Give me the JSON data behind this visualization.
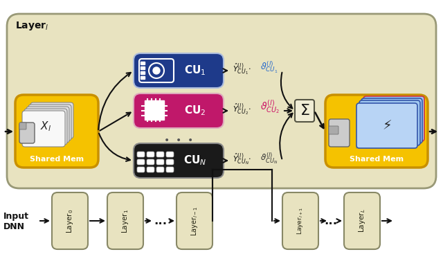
{
  "bg_color": "#ffffff",
  "bottom_section_bg": "#e8e3c0",
  "layer_box_color": "#e8e3c0",
  "layer_box_edge": "#888866",
  "cu1_color": "#1e3a8a",
  "cu2_color": "#c0186a",
  "cuN_color": "#1a1a1a",
  "shared_mem_color": "#f5c200",
  "shared_mem_edge": "#c89000",
  "theta1_color": "#2266cc",
  "theta2_color": "#cc1166",
  "thetaN_color": "#333333",
  "arrow_color": "#111111",
  "figsize": [
    6.4,
    3.9
  ],
  "dpi": 100,
  "top_layers_left": [
    "Layer$_0$",
    "Layer$_1$",
    "Layer$_{l-1}$"
  ],
  "top_layers_right": [
    "Layer$_{l+1}$",
    "Layer$_L$"
  ],
  "cu_labels": [
    "CU$_1$",
    "CU$_2$",
    "CU$_N$"
  ]
}
